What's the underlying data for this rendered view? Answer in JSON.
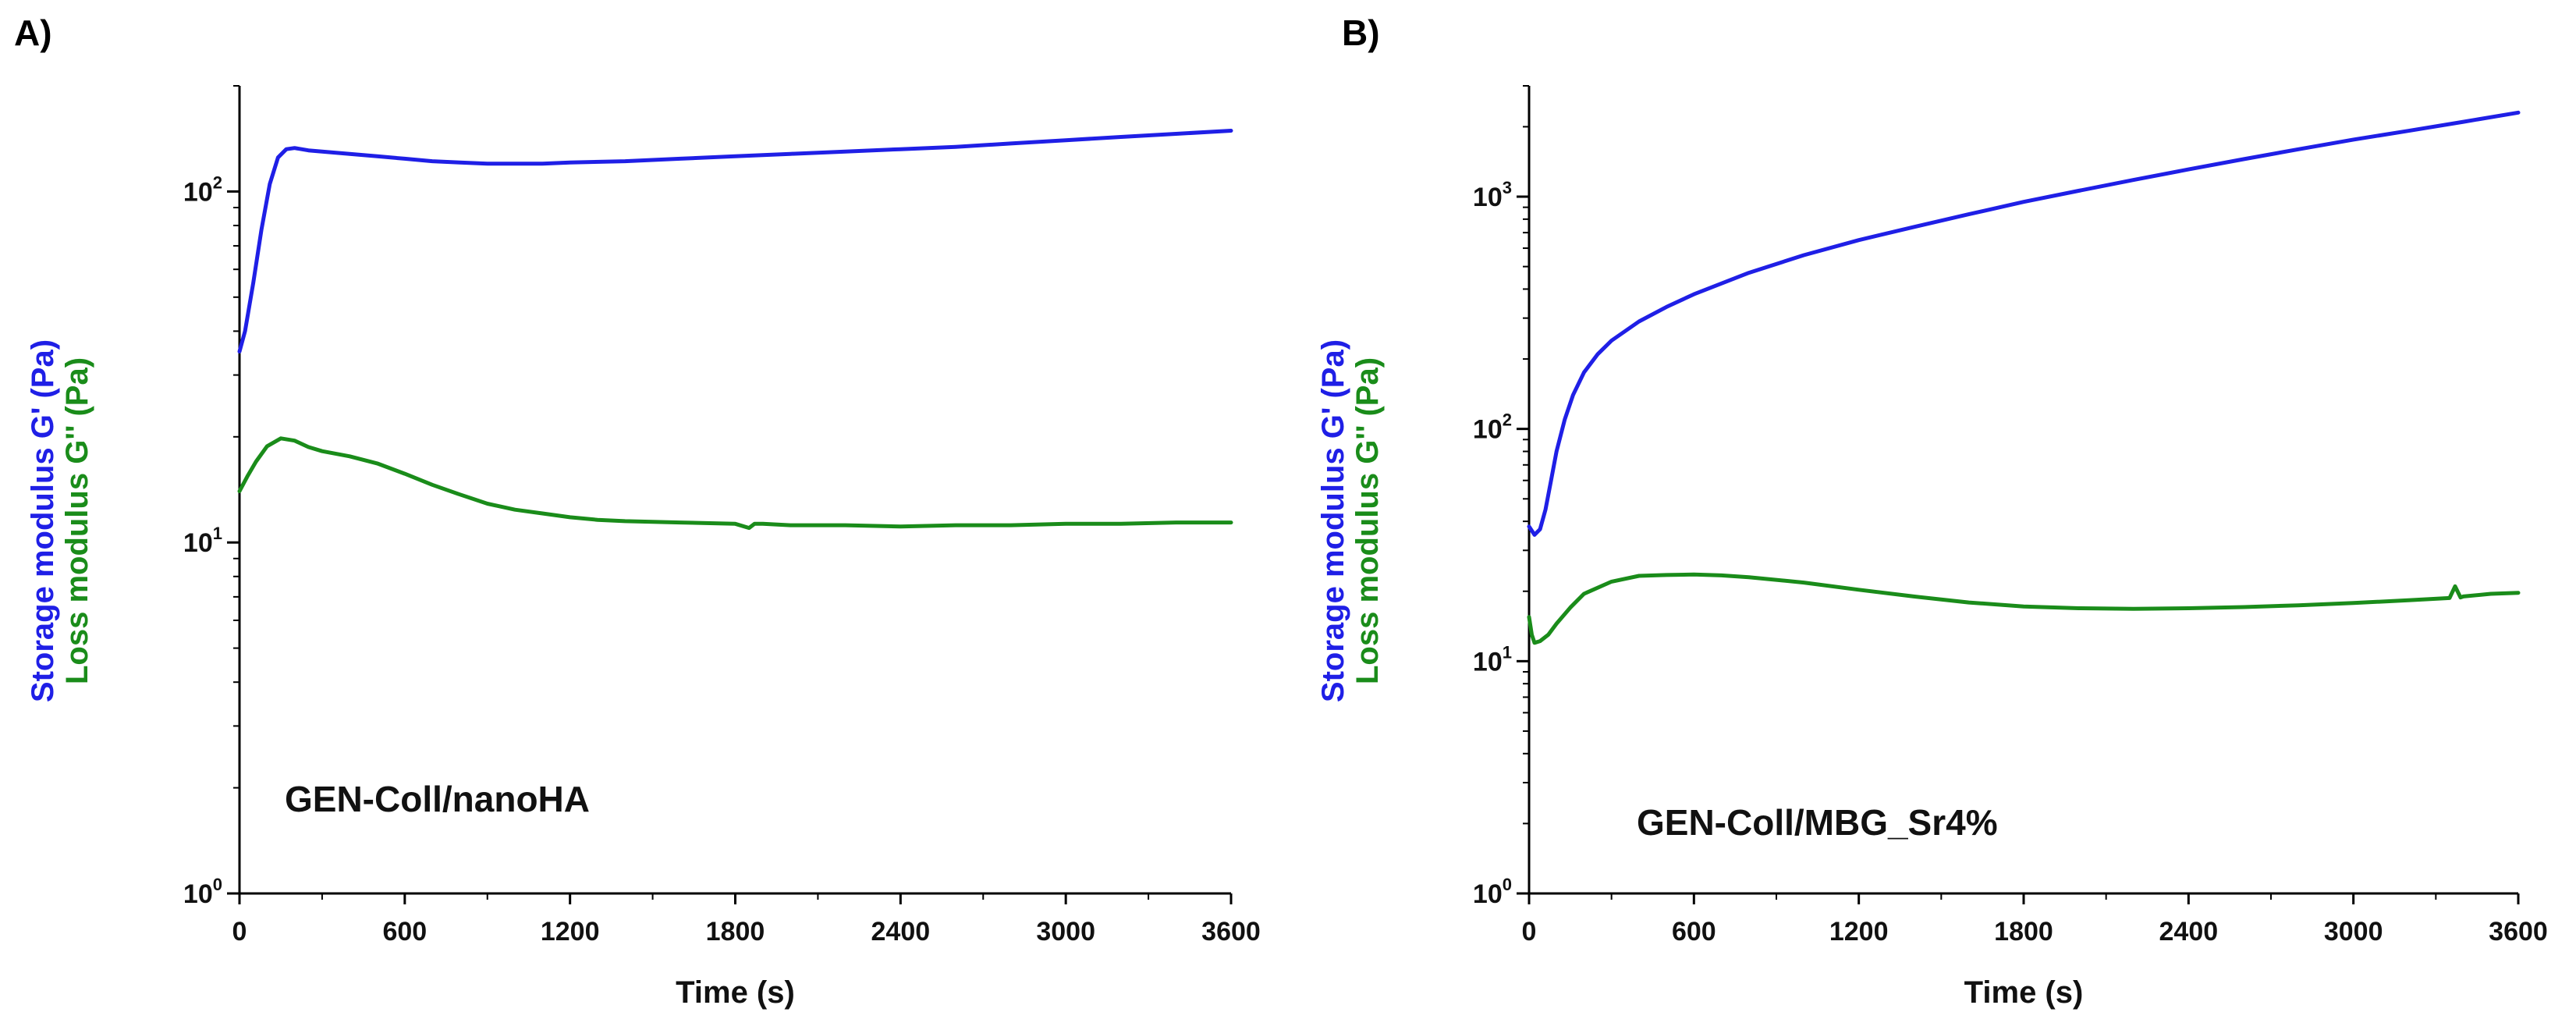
{
  "chart_data": [
    {
      "type": "line",
      "panel_label": "A)",
      "annotation": "GEN-Coll/nanoHA",
      "xlabel": "Time (s)",
      "ylabel_primary": "Storage modulus G' (Pa)",
      "ylabel_secondary": "Loss modulus G'' (Pa)",
      "xlim": [
        0,
        3600
      ],
      "ylim": [
        1,
        200
      ],
      "yscale": "log",
      "x_ticks": [
        "0",
        "600",
        "1200",
        "1800",
        "2400",
        "3000",
        "3600"
      ],
      "y_ticks": [
        {
          "base": "10",
          "exp": "0"
        },
        {
          "base": "10",
          "exp": "1"
        },
        {
          "base": "10",
          "exp": "2"
        }
      ],
      "series": [
        {
          "name": "Storage modulus G'",
          "color": "#1f1fe6",
          "x": [
            0,
            20,
            50,
            80,
            110,
            140,
            170,
            200,
            250,
            300,
            400,
            500,
            600,
            700,
            800,
            900,
            1000,
            1100,
            1200,
            1400,
            1600,
            1800,
            2000,
            2200,
            2400,
            2600,
            2800,
            3000,
            3200,
            3400,
            3600
          ],
          "y": [
            35,
            40,
            55,
            78,
            105,
            125,
            132,
            133,
            131,
            130,
            128,
            126,
            124,
            122,
            121,
            120,
            120,
            120,
            121,
            122,
            124,
            126,
            128,
            130,
            132,
            134,
            137,
            140,
            143,
            146,
            149
          ]
        },
        {
          "name": "Loss modulus G''",
          "color": "#1a8c1a",
          "x": [
            0,
            30,
            60,
            100,
            150,
            200,
            250,
            300,
            400,
            500,
            600,
            700,
            800,
            900,
            1000,
            1100,
            1200,
            1300,
            1400,
            1600,
            1800,
            1850,
            1870,
            1900,
            2000,
            2200,
            2400,
            2600,
            2800,
            3000,
            3200,
            3400,
            3600
          ],
          "y": [
            14,
            15.5,
            17,
            18.8,
            19.8,
            19.5,
            18.7,
            18.2,
            17.6,
            16.8,
            15.7,
            14.6,
            13.7,
            12.9,
            12.4,
            12.1,
            11.8,
            11.6,
            11.5,
            11.4,
            11.3,
            11.0,
            11.3,
            11.3,
            11.2,
            11.2,
            11.1,
            11.2,
            11.2,
            11.3,
            11.3,
            11.4,
            11.4
          ]
        }
      ]
    },
    {
      "type": "line",
      "panel_label": "B)",
      "annotation": "GEN-Coll/MBG_Sr4%",
      "xlabel": "Time (s)",
      "ylabel_primary": "Storage modulus G' (Pa)",
      "ylabel_secondary": "Loss modulus G'' (Pa)",
      "xlim": [
        0,
        3600
      ],
      "ylim": [
        1,
        3000
      ],
      "yscale": "log",
      "x_ticks": [
        "0",
        "600",
        "1200",
        "1800",
        "2400",
        "3000",
        "3600"
      ],
      "y_ticks": [
        {
          "base": "10",
          "exp": "0"
        },
        {
          "base": "10",
          "exp": "1"
        },
        {
          "base": "10",
          "exp": "2"
        },
        {
          "base": "10",
          "exp": "3"
        }
      ],
      "series": [
        {
          "name": "Storage modulus G'",
          "color": "#1f1fe6",
          "x": [
            0,
            20,
            40,
            60,
            80,
            100,
            130,
            160,
            200,
            250,
            300,
            400,
            500,
            600,
            800,
            1000,
            1200,
            1400,
            1600,
            1800,
            2000,
            2200,
            2400,
            2600,
            2800,
            3000,
            3200,
            3400,
            3600
          ],
          "y": [
            38,
            35,
            37,
            45,
            60,
            80,
            110,
            140,
            175,
            210,
            240,
            290,
            335,
            380,
            470,
            560,
            650,
            740,
            840,
            950,
            1060,
            1180,
            1310,
            1450,
            1600,
            1760,
            1920,
            2100,
            2300
          ]
        },
        {
          "name": "Loss modulus G''",
          "color": "#1a8c1a",
          "x": [
            0,
            10,
            20,
            40,
            70,
            100,
            150,
            200,
            300,
            400,
            500,
            600,
            700,
            800,
            1000,
            1200,
            1400,
            1600,
            1800,
            2000,
            2200,
            2400,
            2600,
            2800,
            3000,
            3200,
            3350,
            3370,
            3390,
            3400,
            3500,
            3600
          ],
          "y": [
            15.5,
            13,
            12,
            12.2,
            13,
            14.5,
            17,
            19.5,
            22,
            23.3,
            23.5,
            23.6,
            23.4,
            23,
            21.8,
            20.3,
            19,
            17.9,
            17.2,
            16.9,
            16.8,
            16.9,
            17.1,
            17.4,
            17.8,
            18.3,
            18.7,
            21,
            18.8,
            19,
            19.5,
            19.7
          ]
        }
      ]
    }
  ]
}
